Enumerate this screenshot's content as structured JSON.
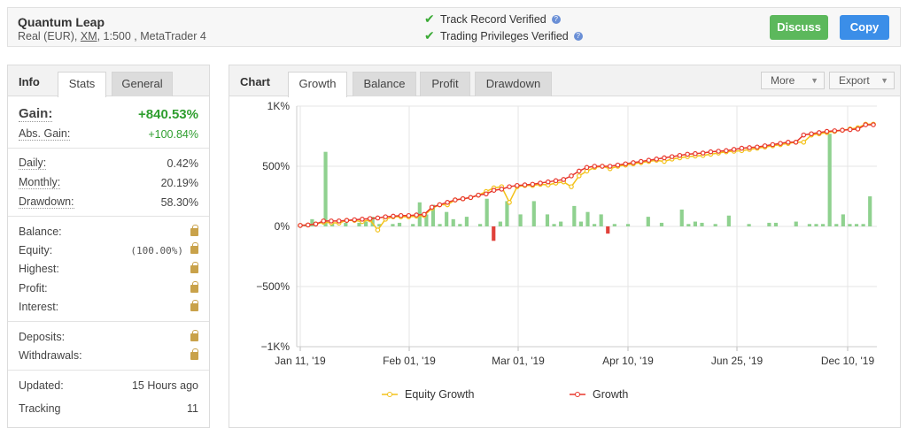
{
  "header": {
    "title": "Quantum Leap",
    "sub_prefix": "Real (EUR),",
    "broker": "XM",
    "sub_suffix": ", 1:500 , MetaTrader 4",
    "verified_1": "Track Record Verified",
    "verified_2": "Trading Privileges Verified",
    "discuss_label": "Discuss",
    "copy_label": "Copy",
    "help_glyph": "?"
  },
  "info": {
    "title": "Info",
    "tabs": [
      "Stats",
      "General"
    ],
    "gain": {
      "label": "Gain:",
      "value": "+840.53%"
    },
    "abs_gain": {
      "label": "Abs. Gain:",
      "value": "+100.84%"
    },
    "daily": {
      "label": "Daily:",
      "value": "0.42%"
    },
    "monthly": {
      "label": "Monthly:",
      "value": "20.19%"
    },
    "drawdown": {
      "label": "Drawdown:",
      "value": "58.30%"
    },
    "balance": {
      "label": "Balance:"
    },
    "equity": {
      "label": "Equity:",
      "value": "(100.00%)"
    },
    "highest": {
      "label": "Highest:"
    },
    "profit": {
      "label": "Profit:"
    },
    "interest": {
      "label": "Interest:"
    },
    "deposits": {
      "label": "Deposits:"
    },
    "withdrawals": {
      "label": "Withdrawals:"
    },
    "updated": {
      "label": "Updated:",
      "value": "15 Hours ago"
    },
    "tracking": {
      "label": "Tracking",
      "value": "11"
    }
  },
  "chart_panel": {
    "title": "Chart",
    "tabs": [
      "Growth",
      "Balance",
      "Profit",
      "Drawdown"
    ],
    "active_tab": "Growth",
    "more_label": "More",
    "export_label": "Export"
  },
  "colors": {
    "green_bar": "#8fd18f",
    "red_bar": "#e0413a",
    "growth_line": "#e8372c",
    "equity_line": "#f3c21a",
    "positive_text": "#2f9e2f",
    "discuss_button": "#5cb85c",
    "copy_button": "#3b8ee8"
  },
  "chart_data": {
    "type": "line",
    "ylim": [
      -1000,
      1000
    ],
    "yticks": [
      "1K%",
      "500%",
      "0%",
      "−500%",
      "−1K%"
    ],
    "xticks": [
      "Jan 11, '19",
      "Feb 01, '19",
      "Mar 01, '19",
      "Apr 10, '19",
      "Jun 25, '19",
      "Dec 10, '19"
    ],
    "grid": true,
    "legend_position": "bottom",
    "series": [
      {
        "name": "Equity Growth",
        "values": [
          8,
          12,
          20,
          35,
          30,
          28,
          50,
          50,
          40,
          55,
          -30,
          60,
          80,
          80,
          80,
          85,
          90,
          150,
          180,
          180,
          220,
          230,
          240,
          260,
          290,
          320,
          330,
          200,
          330,
          340,
          340,
          350,
          345,
          360,
          370,
          330,
          420,
          460,
          490,
          500,
          480,
          500,
          510,
          520,
          530,
          540,
          550,
          540,
          560,
          570,
          580,
          585,
          590,
          600,
          610,
          620,
          625,
          630,
          640,
          650,
          660,
          670,
          680,
          690,
          700,
          700,
          760,
          770,
          780,
          790,
          800,
          810,
          820,
          850,
          850
        ]
      },
      {
        "name": "Growth",
        "values": [
          8,
          12,
          20,
          45,
          45,
          45,
          50,
          55,
          60,
          65,
          70,
          80,
          85,
          90,
          90,
          95,
          100,
          160,
          180,
          200,
          220,
          230,
          240,
          260,
          270,
          300,
          310,
          330,
          340,
          345,
          350,
          360,
          370,
          380,
          390,
          420,
          460,
          490,
          500,
          500,
          500,
          510,
          520,
          530,
          540,
          550,
          560,
          570,
          580,
          590,
          600,
          605,
          610,
          620,
          625,
          630,
          640,
          650,
          655,
          660,
          670,
          680,
          690,
          700,
          700,
          760,
          770,
          780,
          790,
          795,
          800,
          805,
          810,
          845,
          845
        ]
      }
    ],
    "bars": [
      10,
      60,
      0,
      620,
      30,
      0,
      30,
      0,
      30,
      40,
      80,
      20,
      0,
      20,
      30,
      0,
      20,
      200,
      100,
      180,
      20,
      120,
      60,
      20,
      80,
      0,
      20,
      230,
      -120,
      40,
      210,
      0,
      100,
      0,
      210,
      0,
      100,
      20,
      40,
      0,
      170,
      40,
      120,
      20,
      100,
      -60,
      20,
      0,
      20,
      0,
      0,
      80,
      0,
      30,
      0,
      0,
      140,
      20,
      40,
      30,
      0,
      20,
      0,
      90,
      0,
      0,
      20,
      0,
      0,
      30,
      30,
      0,
      0,
      40,
      0,
      20,
      20,
      20,
      770,
      20,
      100,
      20,
      20,
      20,
      250
    ]
  }
}
